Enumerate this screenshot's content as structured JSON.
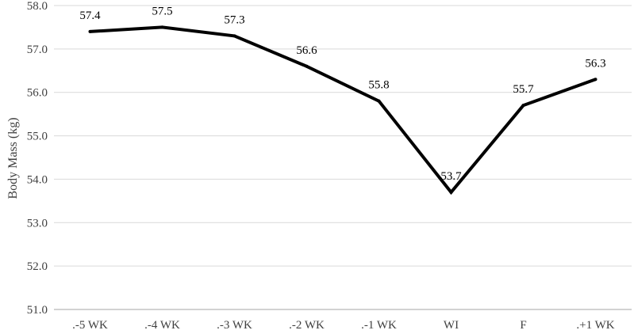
{
  "chart_data": {
    "type": "line",
    "categories": [
      ".-5 WK",
      ".-4 WK",
      ".-3 WK",
      ".-2 WK",
      ".-1 WK",
      "WI",
      "F",
      ".+1 WK"
    ],
    "series": [
      {
        "values": [
          57.4,
          57.5,
          57.3,
          56.6,
          55.8,
          53.7,
          55.7,
          56.3
        ]
      }
    ],
    "data_labels": [
      "57.4",
      "57.5",
      "57.3",
      "56.6",
      "55.8",
      "53.7",
      "55.7",
      "56.3"
    ],
    "ylabel": "Body Mass (kg)",
    "xlabel": "",
    "ylim": [
      51.0,
      58.0
    ],
    "y_ticks": [
      "51.0",
      "52.0",
      "53.0",
      "54.0",
      "55.0",
      "56.0",
      "57.0",
      "58.0"
    ],
    "grid": true,
    "legend": "none",
    "line_color": "#000000"
  }
}
